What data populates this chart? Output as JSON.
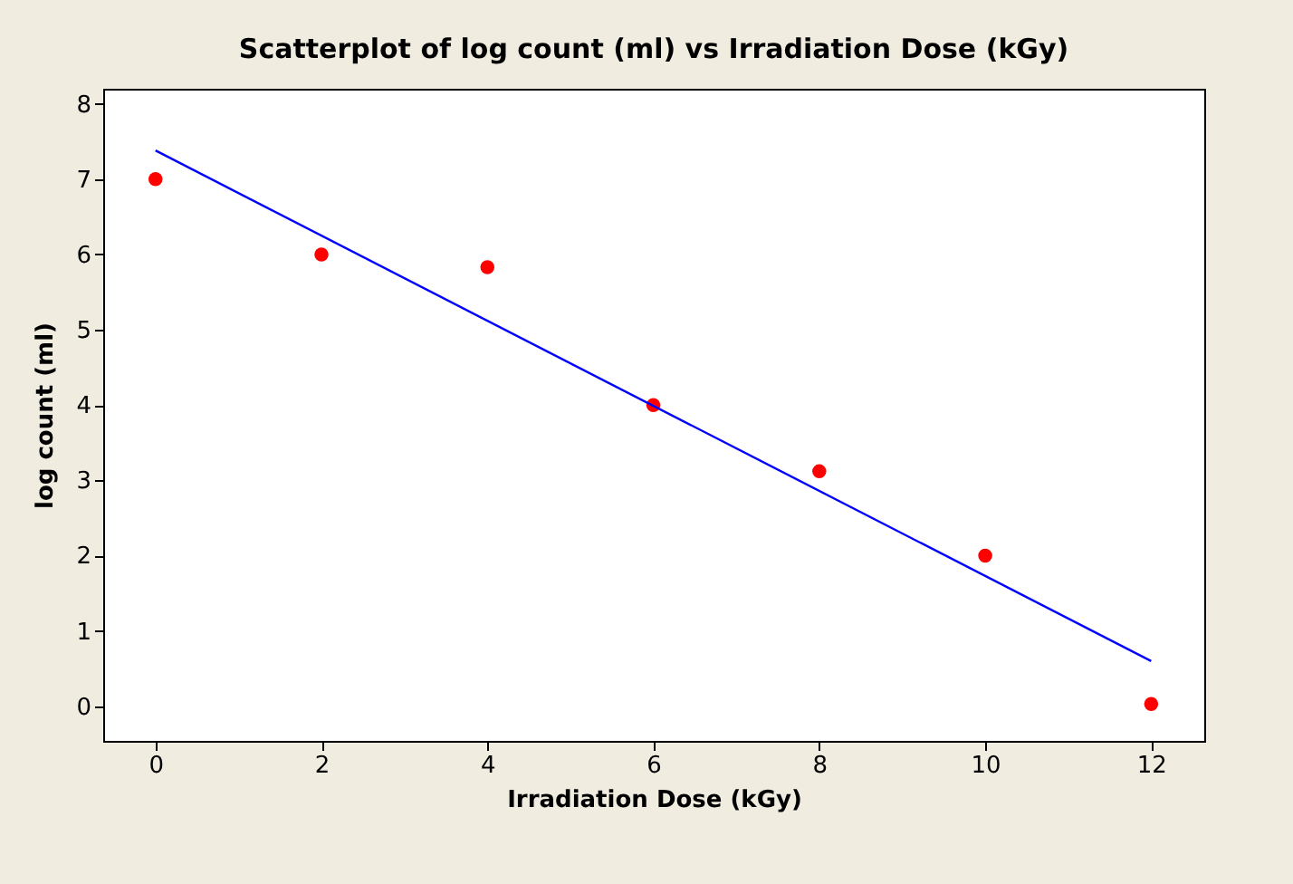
{
  "chart_data": {
    "type": "scatter",
    "title": "Scatterplot of log count (ml) vs Irradiation Dose (kGy)",
    "xlabel": "Irradiation Dose (kGy)",
    "ylabel": "log count (ml)",
    "x": [
      0,
      2,
      4,
      6,
      8,
      10,
      12
    ],
    "series": [
      {
        "color": "#ff0000",
        "marker": "circle",
        "values": [
          7,
          6,
          5.83,
          4,
          3.12,
          2,
          0.03
        ]
      },
      {
        "type": "line",
        "color": "#0000ff",
        "x": [
          0,
          12
        ],
        "values": [
          7.38,
          0.6
        ]
      }
    ],
    "xlim": [
      -0.63,
      12.64
    ],
    "ylim": [
      -0.46,
      8.2
    ],
    "xticks": [
      0,
      2,
      4,
      6,
      8,
      10,
      12
    ],
    "yticks": [
      0,
      1,
      2,
      3,
      4,
      5,
      6,
      7,
      8
    ],
    "grid": false,
    "line_style": "solid"
  }
}
